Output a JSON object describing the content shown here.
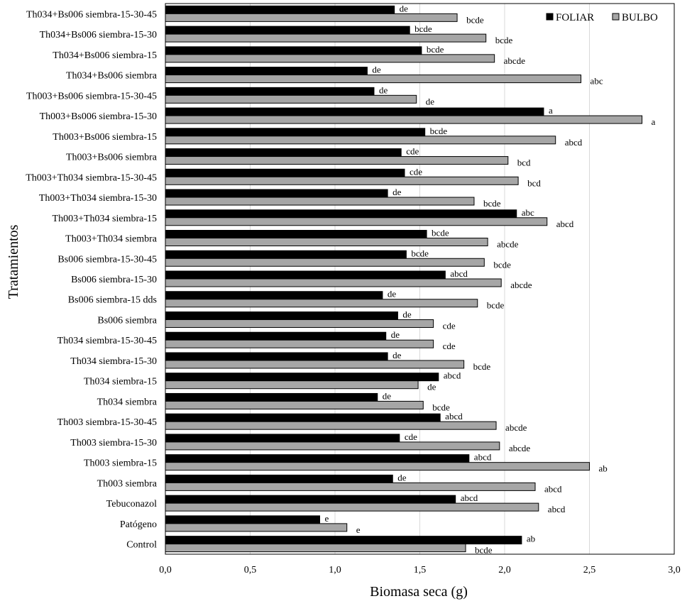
{
  "chart_data": {
    "type": "bar",
    "orientation": "horizontal",
    "xlabel": "Biomasa seca (g)",
    "ylabel": "Tratamientos",
    "xlim": [
      0,
      3.0
    ],
    "xticks": [
      "0,0",
      "0,5",
      "1,0",
      "1,5",
      "2,0",
      "2,5",
      "3,0"
    ],
    "grid": "vertical",
    "legend_position": "top-right",
    "categories": [
      "Th034+Bs006 siembra-15-30-45",
      "Th034+Bs006 siembra-15-30",
      "Th034+Bs006 siembra-15",
      "Th034+Bs006 siembra",
      "Th003+Bs006 siembra-15-30-45",
      "Th003+Bs006 siembra-15-30",
      "Th003+Bs006 siembra-15",
      "Th003+Bs006 siembra",
      "Th003+Th034 siembra-15-30-45",
      "Th003+Th034 siembra-15-30",
      "Th003+Th034 siembra-15",
      "Th003+Th034 siembra",
      "Bs006 siembra-15-30-45",
      "Bs006 siembra-15-30",
      "Bs006 siembra-15 dds",
      "Bs006 siembra",
      "Th034 siembra-15-30-45",
      "Th034 siembra-15-30",
      "Th034 siembra-15",
      "Th034 siembra",
      "Th003 siembra-15-30-45",
      "Th003 siembra-15-30",
      "Th003 siembra-15",
      "Th003 siembra",
      "Tebuconazol",
      "Patógeno",
      "Control"
    ],
    "series": [
      {
        "name": "FOLIAR",
        "color": "#000000",
        "values": [
          1.35,
          1.44,
          1.51,
          1.19,
          1.23,
          2.23,
          1.53,
          1.39,
          1.41,
          1.31,
          2.07,
          1.54,
          1.42,
          1.65,
          1.28,
          1.37,
          1.3,
          1.31,
          1.61,
          1.25,
          1.62,
          1.38,
          1.79,
          1.34,
          1.71,
          0.91,
          2.1
        ],
        "labels": [
          "de",
          "bcde",
          "bcde",
          "de",
          "de",
          "a",
          "bcde",
          "cde",
          "cde",
          "de",
          "abc",
          "bcde",
          "bcde",
          "abcd",
          "de",
          "de",
          "de",
          "de",
          "abcd",
          "de",
          "abcd",
          "cde",
          "abcd",
          "de",
          "abcd",
          "e",
          "ab"
        ]
      },
      {
        "name": "BULBO",
        "color": "#a6a6a6",
        "values": [
          1.72,
          1.89,
          1.94,
          2.45,
          1.48,
          2.81,
          2.3,
          2.02,
          2.08,
          1.82,
          2.25,
          1.9,
          1.88,
          1.98,
          1.84,
          1.58,
          1.58,
          1.76,
          1.49,
          1.52,
          1.95,
          1.97,
          2.5,
          2.18,
          2.2,
          1.07,
          1.77
        ],
        "labels": [
          "bcde",
          "bcde",
          "abcde",
          "abc",
          "de",
          "a",
          "abcd",
          "bcd",
          "bcd",
          "bcde",
          "abcd",
          "abcde",
          "bcde",
          "abcde",
          "bcde",
          "cde",
          "cde",
          "bcde",
          "de",
          "bcde",
          "abcde",
          "abcde",
          "ab",
          "abcd",
          "abcd",
          "e",
          "bcde"
        ]
      }
    ]
  }
}
